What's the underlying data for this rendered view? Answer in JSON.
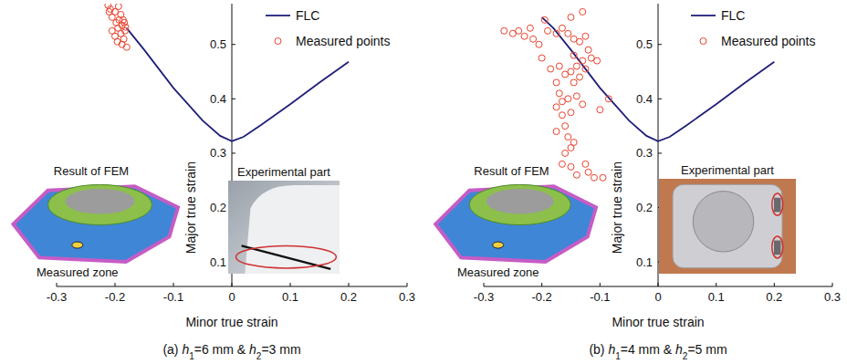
{
  "chart_data": [
    {
      "type": "scatter",
      "caption": "(a) h1=6 mm & h2=3 mm",
      "x_label": "Minor true strain",
      "y_label": "Major true strain",
      "xlim": [
        -0.3,
        0.3
      ],
      "ylim": [
        0.055,
        0.575
      ],
      "xticks": [
        -0.3,
        -0.2,
        -0.1,
        0,
        0.1,
        0.2,
        0.3
      ],
      "yticks": [
        0.1,
        0.2,
        0.3,
        0.4,
        0.5
      ],
      "legend": "upper right",
      "annotations": [
        "Result of FEM",
        "Experimental part",
        "Measured zone"
      ],
      "series": [
        {
          "name": "FLC",
          "type": "line",
          "color": "#1f1f7a",
          "line_style": "solid",
          "x": [
            -0.18,
            -0.15,
            -0.1,
            -0.05,
            -0.02,
            0,
            0.02,
            0.05,
            0.1,
            0.15,
            0.2
          ],
          "values": [
            0.53,
            0.49,
            0.42,
            0.36,
            0.332,
            0.322,
            0.33,
            0.352,
            0.39,
            0.43,
            0.468
          ]
        },
        {
          "name": "Measured points",
          "type": "scatter",
          "color": "#e8412c",
          "marker": "circle_open",
          "x": [
            -0.212,
            -0.208,
            -0.205,
            -0.2,
            -0.198,
            -0.195,
            -0.193,
            -0.19,
            -0.188,
            -0.185,
            -0.183,
            -0.18,
            -0.205,
            -0.2,
            -0.196,
            -0.19,
            -0.186,
            -0.182,
            -0.21,
            -0.194,
            -0.188,
            -0.184
          ],
          "values": [
            0.572,
            0.565,
            0.55,
            0.56,
            0.54,
            0.53,
            0.545,
            0.52,
            0.535,
            0.51,
            0.525,
            0.495,
            0.525,
            0.515,
            0.505,
            0.555,
            0.545,
            0.532,
            0.56,
            0.57,
            0.5,
            0.54
          ]
        }
      ]
    },
    {
      "type": "scatter",
      "caption": "(b) h1=4 mm & h2=5 mm",
      "x_label": "Minor true strain",
      "y_label": "Major true strain",
      "xlim": [
        -0.3,
        0.3
      ],
      "ylim": [
        0.055,
        0.575
      ],
      "xticks": [
        -0.3,
        -0.2,
        -0.1,
        0,
        0.1,
        0.2,
        0.3
      ],
      "yticks": [
        0.1,
        0.2,
        0.3,
        0.4,
        0.5
      ],
      "legend": "upper right",
      "annotations": [
        "Result of FEM",
        "Experimental part",
        "Measured zone"
      ],
      "series": [
        {
          "name": "FLC",
          "type": "line",
          "color": "#1f1f7a",
          "line_style": "solid",
          "x": [
            -0.2,
            -0.18,
            -0.15,
            -0.1,
            -0.05,
            -0.02,
            0,
            0.02,
            0.05,
            0.1,
            0.15,
            0.2
          ],
          "values": [
            0.55,
            0.53,
            0.49,
            0.42,
            0.36,
            0.332,
            0.322,
            0.33,
            0.352,
            0.39,
            0.43,
            0.468
          ]
        },
        {
          "name": "Measured points",
          "type": "scatter",
          "color": "#e8412c",
          "marker": "circle_open",
          "x": [
            -0.265,
            -0.25,
            -0.24,
            -0.23,
            -0.215,
            -0.205,
            -0.19,
            -0.175,
            -0.165,
            -0.155,
            -0.145,
            -0.135,
            -0.125,
            -0.12,
            -0.13,
            -0.15,
            -0.2,
            -0.185,
            -0.17,
            -0.16,
            -0.14,
            -0.13,
            -0.115,
            -0.105,
            -0.125,
            -0.135,
            -0.145,
            -0.15,
            -0.175,
            -0.17,
            -0.165,
            -0.155,
            -0.14,
            -0.175,
            -0.165,
            -0.15,
            -0.16,
            -0.175,
            -0.155,
            -0.145,
            -0.15,
            -0.16,
            -0.165,
            -0.15,
            -0.14,
            -0.12,
            -0.125,
            -0.11,
            -0.095,
            -0.085,
            -0.1,
            -0.195,
            -0.22,
            -0.145,
            -0.13
          ],
          "values": [
            0.525,
            0.52,
            0.525,
            0.515,
            0.51,
            0.5,
            0.525,
            0.52,
            0.53,
            0.52,
            0.51,
            0.505,
            0.515,
            0.49,
            0.56,
            0.55,
            0.475,
            0.455,
            0.46,
            0.445,
            0.46,
            0.47,
            0.475,
            0.47,
            0.455,
            0.44,
            0.43,
            0.45,
            0.43,
            0.41,
            0.395,
            0.4,
            0.405,
            0.385,
            0.37,
            0.375,
            0.35,
            0.34,
            0.33,
            0.32,
            0.31,
            0.3,
            0.28,
            0.275,
            0.26,
            0.265,
            0.28,
            0.255,
            0.255,
            0.4,
            0.38,
            0.545,
            0.53,
            0.48,
            0.39
          ]
        }
      ]
    }
  ]
}
